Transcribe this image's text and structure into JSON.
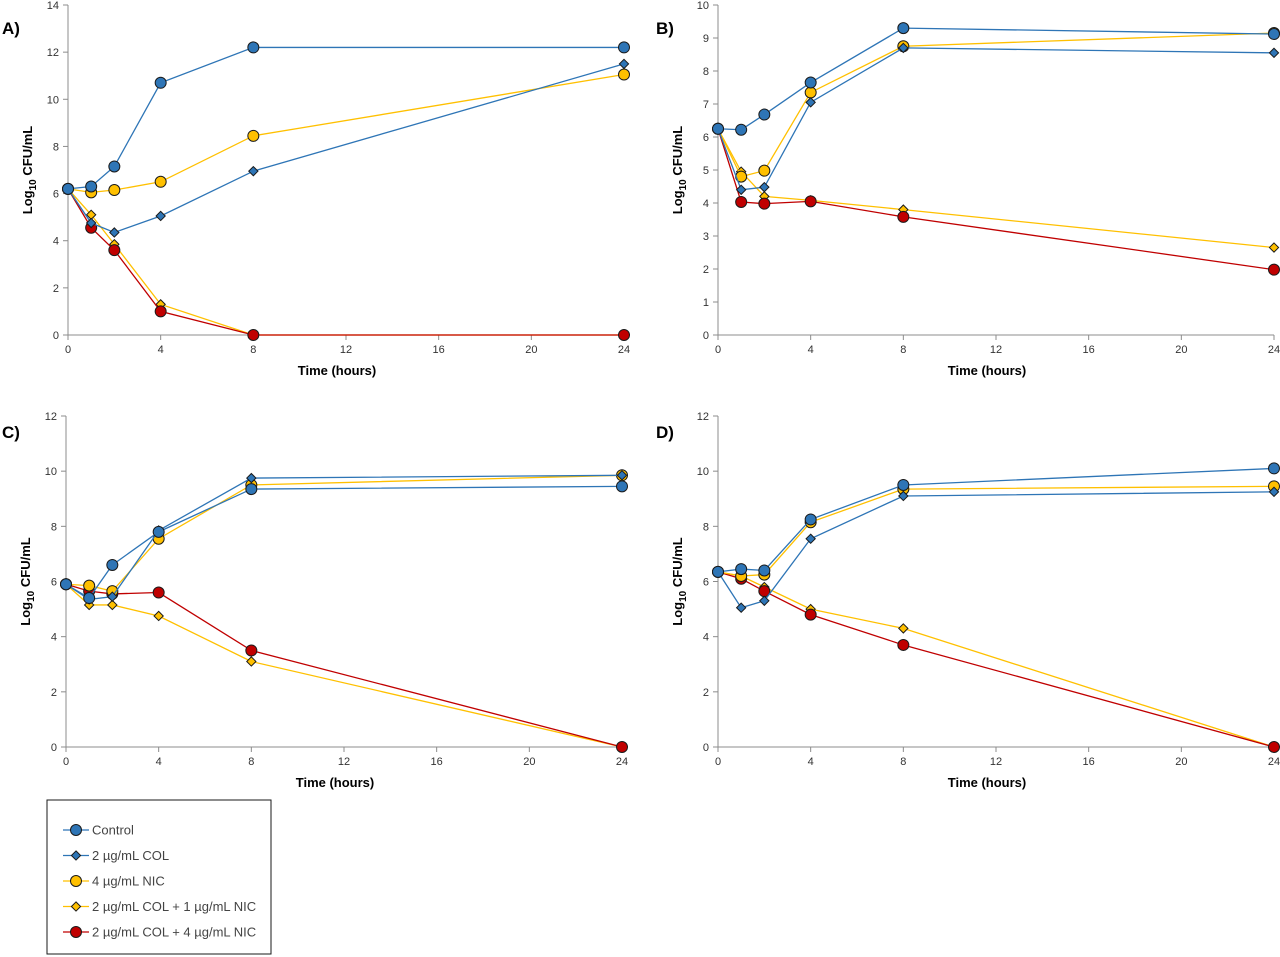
{
  "chart_data": [
    {
      "type": "line",
      "panel_label": "A)",
      "xlabel": "Time (hours)",
      "ylabel_main": "Log",
      "ylabel_sub": "10",
      "ylabel_rest": " CFU/mL",
      "xlim": [
        0,
        24
      ],
      "ylim": [
        0,
        14
      ],
      "xticks": [
        0,
        4,
        8,
        12,
        16,
        20,
        24
      ],
      "yticks": [
        0,
        2,
        4,
        6,
        8,
        10,
        12,
        14
      ],
      "x": [
        0,
        1,
        2,
        4,
        8,
        24
      ],
      "series": [
        {
          "name": "Control",
          "values": [
            6.2,
            6.3,
            7.15,
            10.7,
            12.2,
            12.2
          ]
        },
        {
          "name": "2 µg/mL COL",
          "values": [
            6.2,
            4.75,
            4.35,
            5.05,
            6.95,
            11.5
          ]
        },
        {
          "name": "4 µg/mL NIC",
          "values": [
            6.2,
            6.05,
            6.15,
            6.5,
            8.45,
            11.05
          ]
        },
        {
          "name": "2 µg/mL COL + 1 µg/mL NIC",
          "values": [
            6.2,
            5.1,
            3.85,
            1.3,
            0,
            0
          ]
        },
        {
          "name": "2 µg/mL COL + 4 µg/mL NIC",
          "values": [
            6.2,
            4.55,
            3.6,
            1.0,
            0,
            0
          ]
        }
      ]
    },
    {
      "type": "line",
      "panel_label": "B)",
      "xlabel": "Time (hours)",
      "ylabel_main": "Log",
      "ylabel_sub": "10",
      "ylabel_rest": " CFU/mL",
      "xlim": [
        0,
        24
      ],
      "ylim": [
        0,
        10
      ],
      "xticks": [
        0,
        4,
        8,
        12,
        16,
        20,
        24
      ],
      "yticks": [
        0,
        1,
        2,
        3,
        4,
        5,
        6,
        7,
        8,
        9,
        10
      ],
      "x": [
        0,
        1,
        2,
        4,
        8,
        24
      ],
      "series": [
        {
          "name": "Control",
          "values": [
            6.25,
            6.22,
            6.68,
            7.65,
            9.3,
            9.12
          ]
        },
        {
          "name": "2 µg/mL COL",
          "values": [
            6.25,
            4.4,
            4.48,
            7.05,
            8.7,
            8.55
          ]
        },
        {
          "name": "4 µg/mL NIC",
          "values": [
            6.25,
            4.8,
            4.98,
            7.35,
            8.75,
            9.15
          ]
        },
        {
          "name": "2 µg/mL COL + 1 µg/mL NIC",
          "values": [
            6.25,
            4.95,
            4.2,
            4.08,
            3.8,
            2.65
          ]
        },
        {
          "name": "2 µg/mL COL + 4 µg/mL NIC",
          "values": [
            6.25,
            4.03,
            3.98,
            4.05,
            3.58,
            1.98
          ]
        }
      ]
    },
    {
      "type": "line",
      "panel_label": "C)",
      "xlabel": "Time (hours)",
      "ylabel_main": "Log",
      "ylabel_sub": "10",
      "ylabel_rest": " CFU/mL",
      "xlim": [
        0,
        24
      ],
      "ylim": [
        0,
        12
      ],
      "xticks": [
        0,
        4,
        8,
        12,
        16,
        20,
        24
      ],
      "yticks": [
        0,
        2,
        4,
        6,
        8,
        10,
        12
      ],
      "x": [
        0,
        1,
        2,
        4,
        8,
        24
      ],
      "series": [
        {
          "name": "Control",
          "values": [
            5.9,
            5.4,
            6.6,
            7.8,
            9.35,
            9.45
          ]
        },
        {
          "name": "2 µg/mL COL",
          "values": [
            5.9,
            5.35,
            5.45,
            7.85,
            9.75,
            9.85
          ]
        },
        {
          "name": "4 µg/mL NIC",
          "values": [
            5.9,
            5.85,
            5.65,
            7.55,
            9.5,
            9.85
          ]
        },
        {
          "name": "2 µg/mL COL + 1 µg/mL NIC",
          "values": [
            5.9,
            5.15,
            5.15,
            4.75,
            3.1,
            0
          ]
        },
        {
          "name": "2 µg/mL COL + 4 µg/mL NIC",
          "values": [
            5.9,
            5.65,
            5.55,
            5.6,
            3.5,
            0
          ]
        }
      ]
    },
    {
      "type": "line",
      "panel_label": "D)",
      "xlabel": "Time (hours)",
      "ylabel_main": "Log",
      "ylabel_sub": "10",
      "ylabel_rest": " CFU/mL",
      "xlim": [
        0,
        24
      ],
      "ylim": [
        0,
        12
      ],
      "xticks": [
        0,
        4,
        8,
        12,
        16,
        20,
        24
      ],
      "yticks": [
        0,
        2,
        4,
        6,
        8,
        10,
        12
      ],
      "x": [
        0,
        1,
        2,
        4,
        8,
        24
      ],
      "series": [
        {
          "name": "Control",
          "values": [
            6.35,
            6.45,
            6.4,
            8.25,
            9.5,
            10.1
          ]
        },
        {
          "name": "2 µg/mL COL",
          "values": [
            6.35,
            5.05,
            5.3,
            7.55,
            9.1,
            9.25
          ]
        },
        {
          "name": "4 µg/mL NIC",
          "values": [
            6.35,
            6.2,
            6.25,
            8.15,
            9.35,
            9.45
          ]
        },
        {
          "name": "2 µg/mL COL + 1 µg/mL NIC",
          "values": [
            6.35,
            6.2,
            5.8,
            5.0,
            4.3,
            0
          ]
        },
        {
          "name": "2 µg/mL COL + 4 µg/mL NIC",
          "values": [
            6.35,
            6.1,
            5.65,
            4.8,
            3.7,
            0
          ]
        }
      ]
    }
  ],
  "legend": {
    "entries": [
      {
        "label": "Control",
        "color": "#2e75b6",
        "marker": "circle",
        "fill": "#2e75b6"
      },
      {
        "label": "2 µg/mL COL",
        "color": "#2e75b6",
        "marker": "diamond",
        "fill": "#2e75b6"
      },
      {
        "label": "4 µg/mL NIC",
        "color": "#ffc000",
        "marker": "circle",
        "fill": "#ffc000"
      },
      {
        "label": "2 µg/mL COL + 1 µg/mL NIC",
        "color": "#ffc000",
        "marker": "diamond",
        "fill": "#ffc000"
      },
      {
        "label": "2 µg/mL COL + 4 µg/mL NIC",
        "color": "#c00000",
        "marker": "circle",
        "fill": "#c00000"
      }
    ]
  }
}
